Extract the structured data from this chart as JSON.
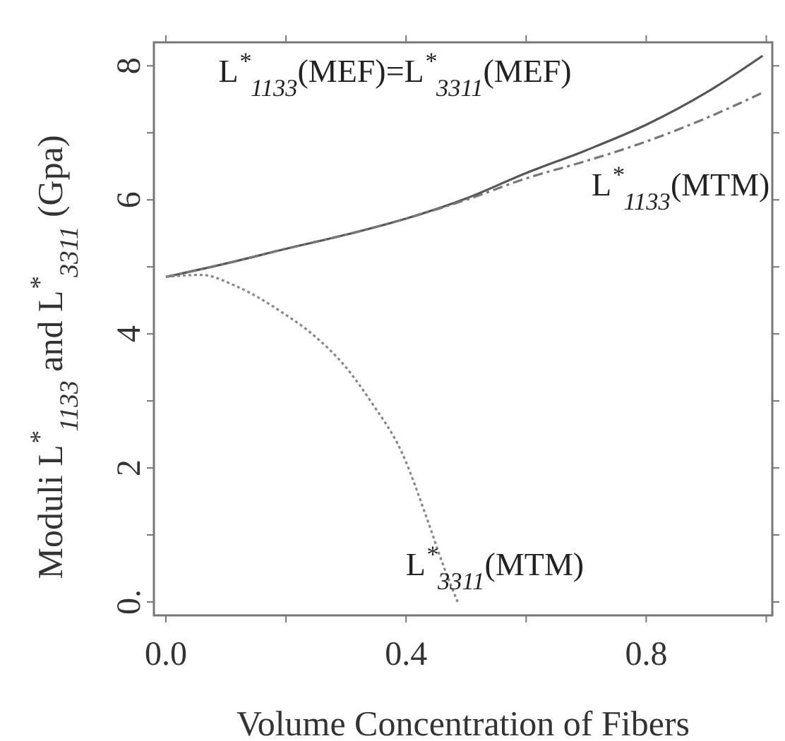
{
  "chart_data": {
    "type": "line",
    "xlabel": "Volume Concentration of Fibers",
    "ylabel": "Moduli L$^{*}$$_{1133}$ and L$^{*}$$_{3311}$ (Gpa)",
    "xlim": [
      -0.02,
      1.01
    ],
    "ylim": [
      -0.2,
      8.35
    ],
    "xticks": [
      {
        "value": 0,
        "label": "0.0"
      },
      {
        "value": 0.2,
        "label": null
      },
      {
        "value": 0.4,
        "label": "0.4"
      },
      {
        "value": 0.6,
        "label": null
      },
      {
        "value": 0.8,
        "label": "0.8"
      },
      {
        "value": 1.0,
        "label": null
      }
    ],
    "yticks": [
      {
        "value": 0,
        "label": "0."
      },
      {
        "value": 1,
        "label": null
      },
      2,
      {
        "value": 3,
        "label": null
      },
      4,
      {
        "value": 5,
        "label": null
      },
      6,
      {
        "value": 7,
        "label": null
      },
      8
    ],
    "grid": false,
    "marker": "none",
    "annotations": [
      "L$^{*}$$_{1133}$(MEF)=L$^{*}$$_{3311}$(MEF)",
      {
        "text": "L$^{*}$$_{1133}$(MTM)",
        "x": 0.9,
        "y": 7.22
      },
      {
        "text": "L$^{*}$$_{3311}$(MTM)",
        "x": 0.47,
        "y": 0.4
      }
    ],
    "series": [
      {
        "color": "#555555",
        "line_style": "solid",
        "x": [
          0,
          0.1,
          0.2,
          0.3,
          0.4,
          0.5,
          0.6,
          0.7,
          0.8,
          0.9,
          0.994
        ],
        "values": [
          4.85,
          5.05,
          5.27,
          5.48,
          5.72,
          6.02,
          6.4,
          6.74,
          7.12,
          7.6,
          8.15
        ]
      },
      {
        "color": "#777777",
        "line_style": "dashed",
        "x": [
          0,
          0.1,
          0.2,
          0.3,
          0.4,
          0.5,
          0.6,
          0.7,
          0.8,
          0.9,
          0.994
        ],
        "values": [
          4.85,
          5.05,
          5.27,
          5.48,
          5.72,
          6.0,
          6.32,
          6.58,
          6.87,
          7.22,
          7.6
        ]
      },
      {
        "color": "#888888",
        "line_style": "dotted",
        "x": [
          0,
          0.058,
          0.12,
          0.192,
          0.25,
          0.3,
          0.343,
          0.393,
          0.435,
          0.461,
          0.486
        ],
        "values": [
          4.85,
          4.88,
          4.7,
          4.33,
          3.95,
          3.5,
          2.97,
          2.23,
          1.24,
          0.57,
          0
        ]
      }
    ]
  }
}
